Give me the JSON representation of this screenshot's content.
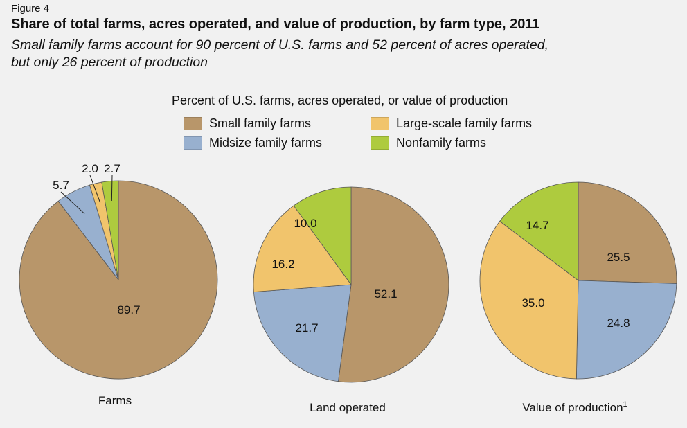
{
  "figure_label": "Figure 4",
  "title": "Share of total farms, acres operated, and value of production, by farm type, 2011",
  "subtitle_line1": "Small family farms account for 90 percent of U.S. farms and 52 percent of acres operated,",
  "subtitle_line2": "but only 26 percent of production",
  "chart_data": {
    "type": "pie",
    "legend_title": "Percent of U.S. farms, acres operated, or value of production",
    "legend_placement": "top-center",
    "categories": [
      "Small family farms",
      "Midsize family farms",
      "Large-scale family farms",
      "Nonfamily farms"
    ],
    "colors": [
      "#b8966a",
      "#98b0cf",
      "#f1c46c",
      "#aecb3e"
    ],
    "pies": [
      {
        "name": "Farms",
        "values": [
          89.7,
          5.7,
          2.0,
          2.7
        ],
        "labels": [
          "89.7",
          "5.7",
          "2.0",
          "2.7"
        ]
      },
      {
        "name": "Land operated",
        "values": [
          52.1,
          21.7,
          16.2,
          10.0
        ],
        "labels": [
          "52.1",
          "21.7",
          "16.2",
          "10.0"
        ]
      },
      {
        "name": "Value of production",
        "footnote": "1",
        "values": [
          25.5,
          24.8,
          35.0,
          14.7
        ],
        "labels": [
          "25.5",
          "24.8",
          "35.0",
          "14.7"
        ]
      }
    ]
  }
}
